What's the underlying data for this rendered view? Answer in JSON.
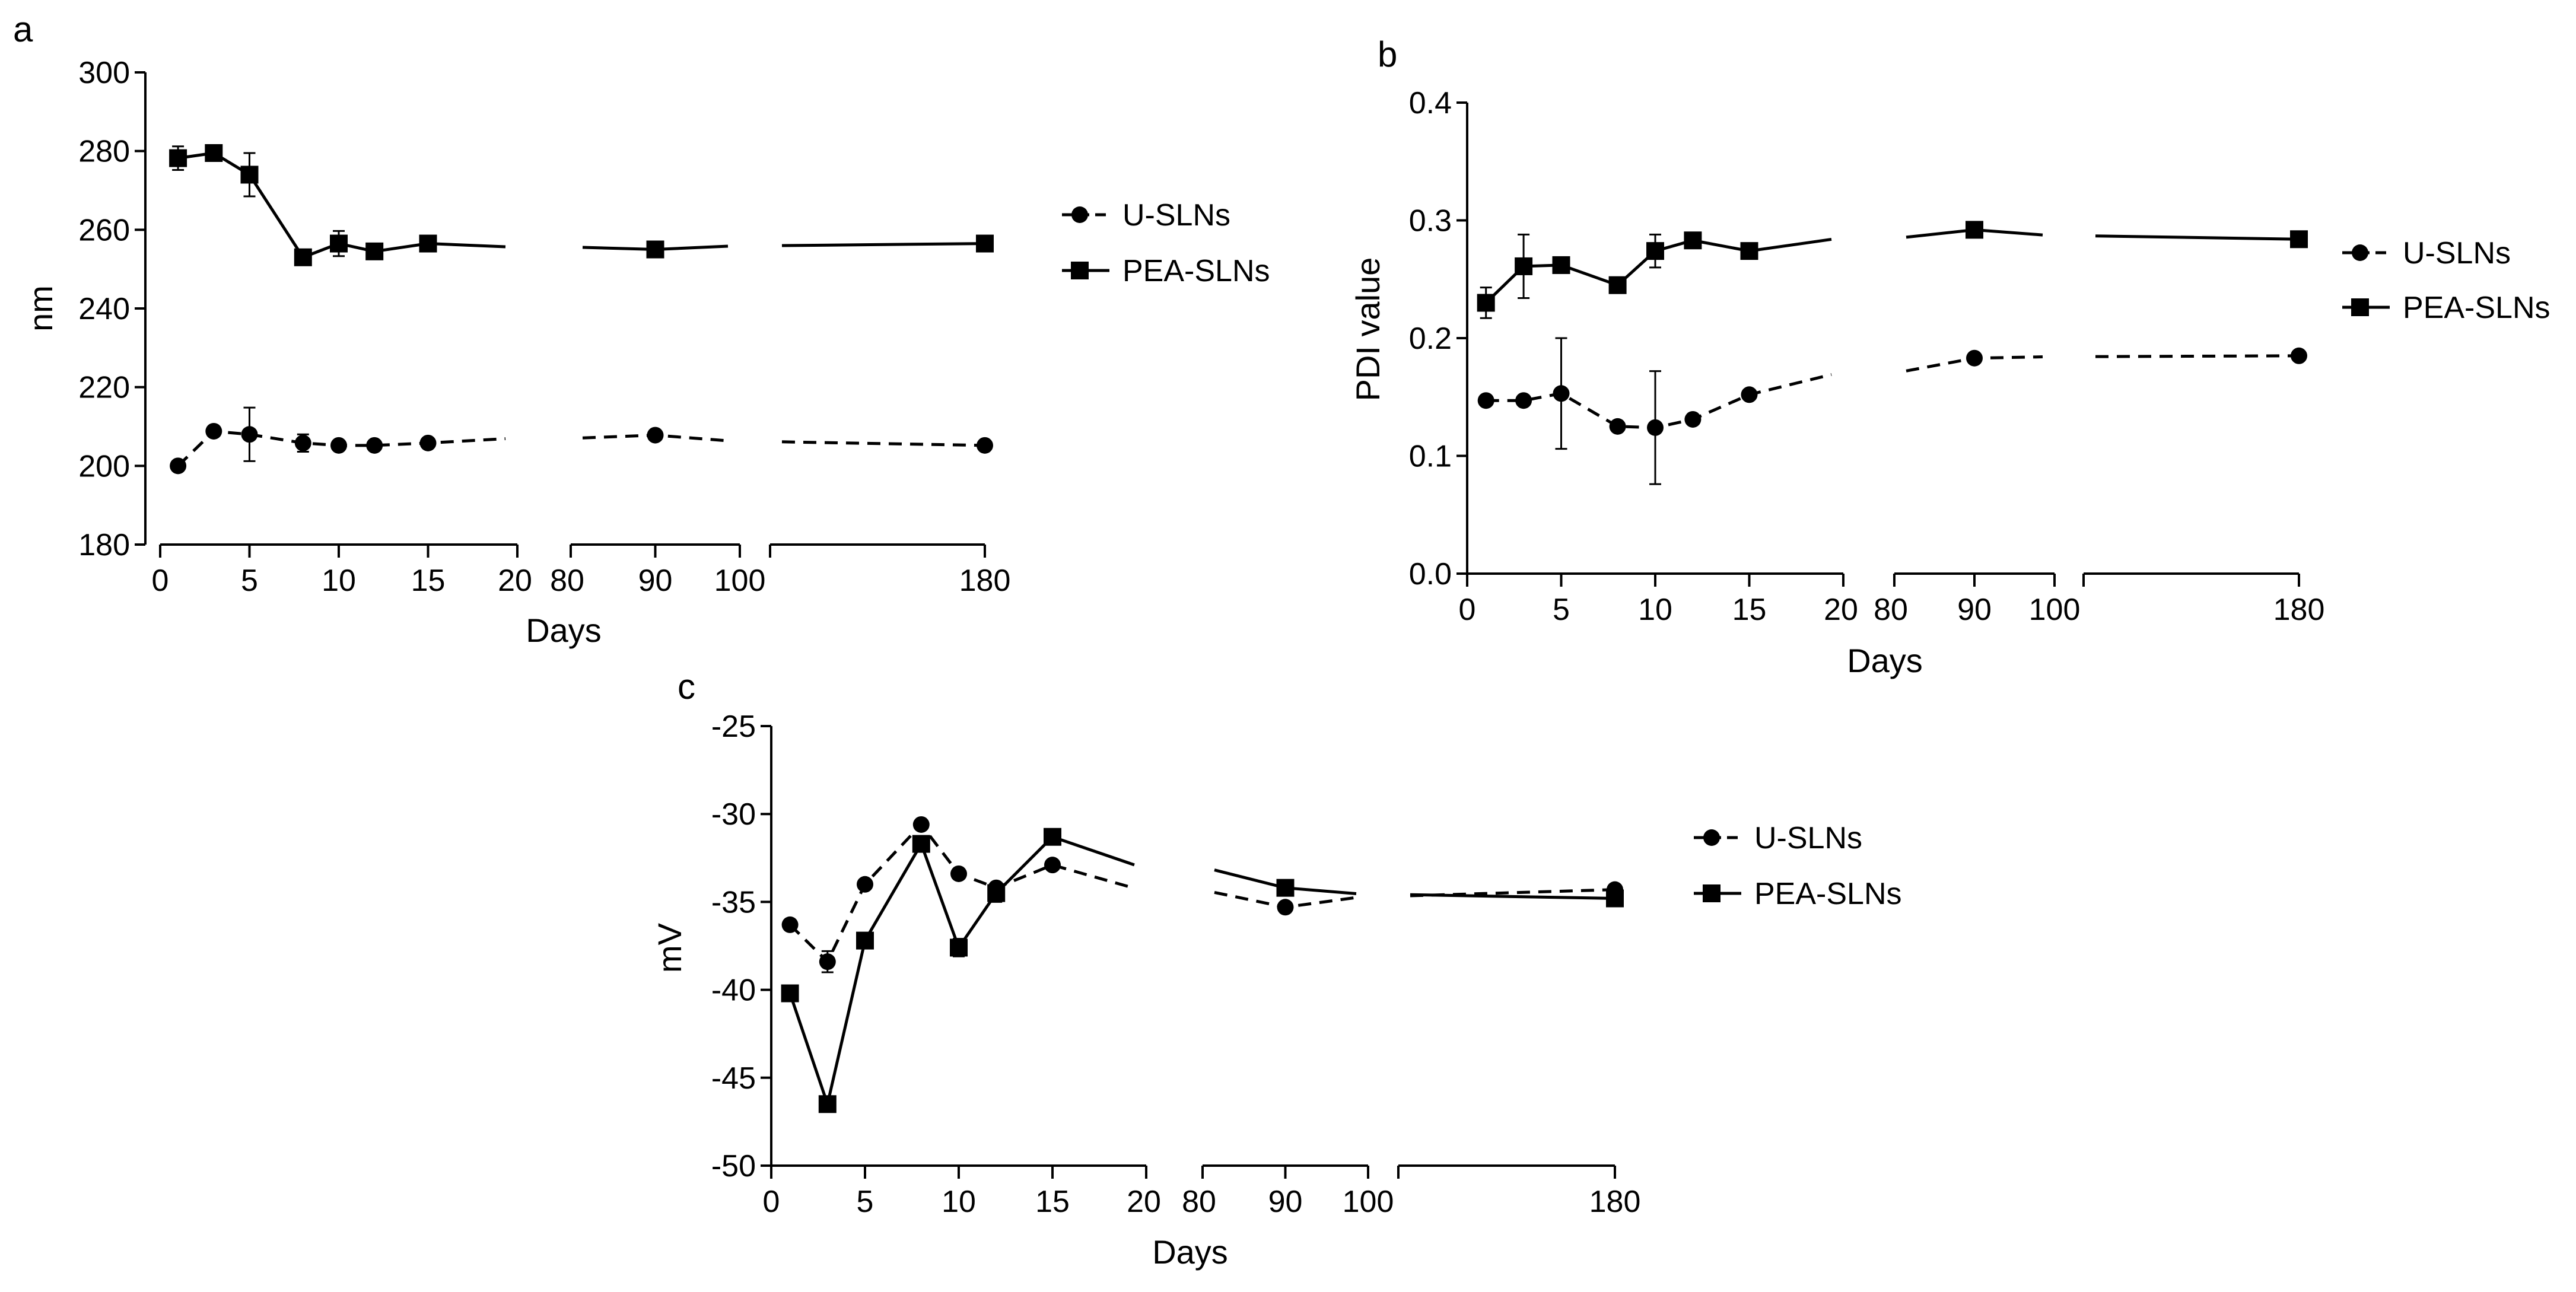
{
  "chart_data": [
    {
      "panel": "a",
      "type": "line",
      "title": "",
      "xlabel": "Days",
      "ylabel": "nm",
      "ylim": [
        180,
        300
      ],
      "yticks": [
        180,
        200,
        220,
        240,
        260,
        280,
        300
      ],
      "x_segments": [
        {
          "range": [
            0,
            20
          ],
          "ticks": [
            0,
            5,
            10,
            15,
            20
          ]
        },
        {
          "range": [
            80,
            100
          ],
          "ticks": [
            80,
            90,
            100
          ]
        },
        {
          "range": [
            100,
            180
          ],
          "ticks": [
            100,
            180
          ]
        }
      ],
      "legend": {
        "position": "right",
        "entries": [
          "U-SLNs",
          "PEA-SLNs"
        ]
      },
      "series": [
        {
          "name": "U-SLNs",
          "marker": "circle",
          "line": "dashed",
          "x": [
            1,
            3,
            5,
            8,
            10,
            12,
            15,
            90,
            180
          ],
          "values": [
            200,
            208.8,
            208,
            205.8,
            205.2,
            205.2,
            205.8,
            207.8,
            205.2
          ],
          "errors": [
            0,
            0,
            6.8,
            2.2,
            0,
            0,
            0,
            0,
            0
          ]
        },
        {
          "name": "PEA-SLNs",
          "marker": "square",
          "line": "solid",
          "x": [
            1,
            3,
            5,
            8,
            10,
            12,
            15,
            90,
            180
          ],
          "values": [
            278.2,
            279.5,
            274,
            253,
            256.5,
            254.5,
            256.5,
            255,
            256.5
          ],
          "errors": [
            3,
            0,
            5.5,
            0,
            3.2,
            0,
            0,
            0,
            0
          ]
        }
      ]
    },
    {
      "panel": "b",
      "type": "line",
      "title": "",
      "xlabel": "Days",
      "ylabel": "PDI value",
      "ylim": [
        0.0,
        0.4
      ],
      "yticks": [
        "0.0",
        "0.1",
        "0.2",
        "0.3",
        "0.4"
      ],
      "x_segments": [
        {
          "range": [
            0,
            20
          ],
          "ticks": [
            0,
            5,
            10,
            15,
            20
          ]
        },
        {
          "range": [
            80,
            100
          ],
          "ticks": [
            80,
            90,
            100
          ]
        },
        {
          "range": [
            100,
            180
          ],
          "ticks": [
            100,
            180
          ]
        }
      ],
      "legend": {
        "position": "right",
        "entries": [
          "U-SLNs",
          "PEA-SLNs"
        ]
      },
      "series": [
        {
          "name": "U-SLNs",
          "marker": "circle",
          "line": "dashed",
          "x": [
            1,
            3,
            5,
            8,
            10,
            12,
            15,
            90,
            180
          ],
          "values": [
            0.147,
            0.147,
            0.153,
            0.125,
            0.124,
            0.131,
            0.152,
            0.183,
            0.185
          ],
          "errors": [
            0,
            0,
            0.047,
            0,
            0.048,
            0,
            0,
            0,
            0
          ]
        },
        {
          "name": "PEA-SLNs",
          "marker": "square",
          "line": "solid",
          "x": [
            1,
            3,
            5,
            8,
            10,
            12,
            15,
            90,
            180
          ],
          "values": [
            0.23,
            0.261,
            0.262,
            0.245,
            0.274,
            0.283,
            0.274,
            0.292,
            0.284
          ],
          "errors": [
            0.013,
            0.027,
            0,
            0,
            0.014,
            0,
            0,
            0,
            0
          ]
        }
      ]
    },
    {
      "panel": "c",
      "type": "line",
      "title": "",
      "xlabel": "Days",
      "ylabel": "mV",
      "ylim": [
        -50,
        -25
      ],
      "yticks": [
        -50,
        -45,
        -40,
        -35,
        -30,
        -25
      ],
      "x_segments": [
        {
          "range": [
            0,
            20
          ],
          "ticks": [
            0,
            5,
            10,
            15,
            20
          ]
        },
        {
          "range": [
            80,
            100
          ],
          "ticks": [
            80,
            90,
            100
          ]
        },
        {
          "range": [
            100,
            180
          ],
          "ticks": [
            100,
            180
          ]
        }
      ],
      "legend": {
        "position": "right",
        "entries": [
          "U-SLNs",
          "PEA-SLNs"
        ]
      },
      "series": [
        {
          "name": "U-SLNs",
          "marker": "circle",
          "line": "dashed",
          "x": [
            1,
            3,
            5,
            8,
            10,
            12,
            15,
            90,
            180
          ],
          "values": [
            -36.3,
            -38.4,
            -34,
            -30.6,
            -33.4,
            -34.2,
            -32.9,
            -35.3,
            -34.3
          ],
          "errors": [
            0,
            0.6,
            0,
            0,
            0,
            0,
            0,
            0,
            0
          ]
        },
        {
          "name": "PEA-SLNs",
          "marker": "square",
          "line": "solid",
          "x": [
            1,
            3,
            5,
            8,
            10,
            12,
            15,
            90,
            180
          ],
          "values": [
            -40.2,
            -46.5,
            -37.2,
            -31.7,
            -37.6,
            -34.5,
            -31.3,
            -34.2,
            -34.8
          ],
          "errors": [
            0,
            0,
            0,
            0,
            0.5,
            0.5,
            0,
            0,
            0
          ]
        }
      ]
    }
  ]
}
